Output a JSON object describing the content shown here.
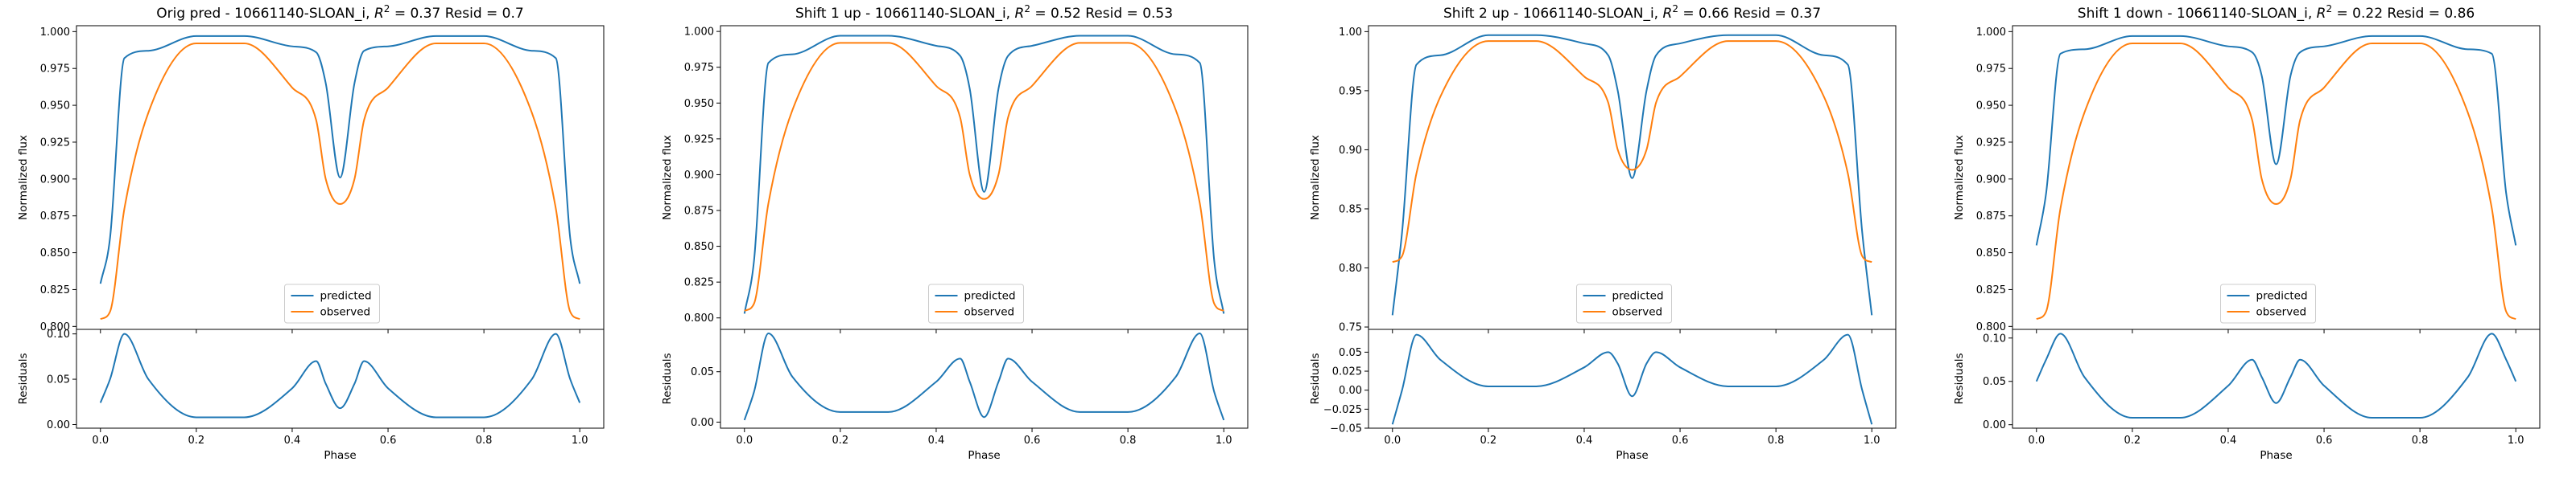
{
  "colors": {
    "predicted": "#1f77b4",
    "observed": "#ff7f0e"
  },
  "chart_data": [
    {
      "type": "line",
      "title": "Orig pred - 10661140-SLOAN_i, R² = 0.37 Resid = 0.7",
      "title_parts": {
        "prefix": "Orig pred - 10661140-SLOAN_i, ",
        "r2_value": "0.37",
        "resid_text": "Resid = 0.7"
      },
      "xlabel": "Phase",
      "ylabel": "Normalized flux",
      "resid_ylabel": "Residuals",
      "legend": {
        "entries": [
          "predicted",
          "observed"
        ],
        "placement": "lower-center"
      },
      "x": [
        0.0,
        0.02,
        0.05,
        0.1,
        0.2,
        0.3,
        0.4,
        0.45,
        0.47,
        0.5,
        0.53,
        0.55,
        0.6,
        0.7,
        0.8,
        0.9,
        0.95,
        0.98,
        1.0
      ],
      "series": [
        {
          "name": "predicted",
          "values": [
            0.829,
            0.86,
            0.982,
            0.987,
            0.997,
            0.997,
            0.99,
            0.986,
            0.965,
            0.901,
            0.965,
            0.987,
            0.99,
            0.997,
            0.997,
            0.987,
            0.982,
            0.86,
            0.829
          ]
        },
        {
          "name": "observed",
          "values": [
            0.805,
            0.81,
            0.88,
            0.945,
            0.992,
            0.992,
            0.962,
            0.94,
            0.9,
            0.883,
            0.9,
            0.94,
            0.962,
            0.992,
            0.992,
            0.945,
            0.88,
            0.81,
            0.805
          ]
        }
      ],
      "residuals": [
        0.024,
        0.05,
        0.1,
        0.05,
        0.008,
        0.008,
        0.04,
        0.07,
        0.045,
        0.018,
        0.045,
        0.07,
        0.04,
        0.008,
        0.008,
        0.05,
        0.1,
        0.05,
        0.024
      ],
      "xlim": [
        -0.05,
        1.05
      ],
      "ylim": [
        0.798,
        1.004
      ],
      "yticks": [
        0.8,
        0.825,
        0.85,
        0.875,
        0.9,
        0.925,
        0.95,
        0.975,
        1.0
      ],
      "ytick_labels": [
        "0.800",
        "0.825",
        "0.850",
        "0.875",
        "0.900",
        "0.925",
        "0.950",
        "0.975",
        "1.000"
      ],
      "resid_ylim": [
        -0.004,
        0.105
      ],
      "resid_yticks": [
        0.0,
        0.05,
        0.1
      ],
      "resid_ytick_labels": [
        "0.00",
        "0.05",
        "0.10"
      ],
      "xticks": [
        0.0,
        0.2,
        0.4,
        0.6,
        0.8,
        1.0
      ],
      "xtick_labels": [
        "0.0",
        "0.2",
        "0.4",
        "0.6",
        "0.8",
        "1.0"
      ]
    },
    {
      "type": "line",
      "title": "Shift 1 up - 10661140-SLOAN_i, R² = 0.52 Resid = 0.53",
      "title_parts": {
        "prefix": "Shift 1 up - 10661140-SLOAN_i, ",
        "r2_value": "0.52",
        "resid_text": "Resid = 0.53"
      },
      "xlabel": "Phase",
      "ylabel": "Normalized flux",
      "resid_ylabel": "Residuals",
      "legend": {
        "entries": [
          "predicted",
          "observed"
        ],
        "placement": "lower-center"
      },
      "x": [
        0.0,
        0.02,
        0.05,
        0.1,
        0.2,
        0.3,
        0.4,
        0.45,
        0.47,
        0.5,
        0.53,
        0.55,
        0.6,
        0.7,
        0.8,
        0.9,
        0.95,
        0.98,
        1.0
      ],
      "series": [
        {
          "name": "predicted",
          "values": [
            0.803,
            0.84,
            0.978,
            0.984,
            0.997,
            0.997,
            0.99,
            0.983,
            0.96,
            0.888,
            0.96,
            0.983,
            0.99,
            0.997,
            0.997,
            0.984,
            0.978,
            0.84,
            0.803
          ]
        },
        {
          "name": "observed",
          "values": [
            0.805,
            0.81,
            0.88,
            0.945,
            0.992,
            0.992,
            0.962,
            0.94,
            0.9,
            0.883,
            0.9,
            0.94,
            0.962,
            0.992,
            0.992,
            0.945,
            0.88,
            0.81,
            0.805
          ]
        }
      ],
      "residuals": [
        0.002,
        0.03,
        0.088,
        0.045,
        0.01,
        0.01,
        0.04,
        0.063,
        0.04,
        0.005,
        0.04,
        0.063,
        0.04,
        0.01,
        0.01,
        0.045,
        0.088,
        0.03,
        0.002
      ],
      "xlim": [
        -0.05,
        1.05
      ],
      "ylim": [
        0.792,
        1.004
      ],
      "yticks": [
        0.8,
        0.825,
        0.85,
        0.875,
        0.9,
        0.925,
        0.95,
        0.975,
        1.0
      ],
      "ytick_labels": [
        "0.800",
        "0.825",
        "0.850",
        "0.875",
        "0.900",
        "0.925",
        "0.950",
        "0.975",
        "1.000"
      ],
      "resid_ylim": [
        -0.006,
        0.092
      ],
      "resid_yticks": [
        0.0,
        0.05
      ],
      "resid_ytick_labels": [
        "0.00",
        "0.05"
      ],
      "xticks": [
        0.0,
        0.2,
        0.4,
        0.6,
        0.8,
        1.0
      ],
      "xtick_labels": [
        "0.0",
        "0.2",
        "0.4",
        "0.6",
        "0.8",
        "1.0"
      ]
    },
    {
      "type": "line",
      "title": "Shift 2 up - 10661140-SLOAN_i, R² = 0.66 Resid = 0.37",
      "title_parts": {
        "prefix": "Shift 2 up - 10661140-SLOAN_i, ",
        "r2_value": "0.66",
        "resid_text": "Resid = 0.37"
      },
      "xlabel": "Phase",
      "ylabel": "Normalized flux",
      "resid_ylabel": "Residuals",
      "legend": {
        "entries": [
          "predicted",
          "observed"
        ],
        "placement": "lower-center"
      },
      "x": [
        0.0,
        0.02,
        0.05,
        0.1,
        0.2,
        0.3,
        0.4,
        0.45,
        0.47,
        0.5,
        0.53,
        0.55,
        0.6,
        0.7,
        0.8,
        0.9,
        0.95,
        0.98,
        1.0
      ],
      "series": [
        {
          "name": "predicted",
          "values": [
            0.76,
            0.83,
            0.972,
            0.98,
            0.997,
            0.997,
            0.99,
            0.98,
            0.95,
            0.876,
            0.95,
            0.98,
            0.99,
            0.997,
            0.997,
            0.98,
            0.972,
            0.83,
            0.76
          ]
        },
        {
          "name": "observed",
          "values": [
            0.805,
            0.81,
            0.88,
            0.945,
            0.992,
            0.992,
            0.962,
            0.94,
            0.9,
            0.883,
            0.9,
            0.94,
            0.962,
            0.992,
            0.992,
            0.945,
            0.88,
            0.81,
            0.805
          ]
        }
      ],
      "residuals": [
        -0.045,
        0.0,
        0.073,
        0.04,
        0.005,
        0.005,
        0.03,
        0.05,
        0.035,
        -0.008,
        0.035,
        0.05,
        0.03,
        0.005,
        0.005,
        0.04,
        0.073,
        0.0,
        -0.045
      ],
      "xlim": [
        -0.05,
        1.05
      ],
      "ylim": [
        0.748,
        1.005
      ],
      "yticks": [
        0.75,
        0.8,
        0.85,
        0.9,
        0.95,
        1.0
      ],
      "ytick_labels": [
        "0.75",
        "0.80",
        "0.85",
        "0.90",
        "0.95",
        "1.00"
      ],
      "resid_ylim": [
        -0.05,
        0.08
      ],
      "resid_yticks": [
        -0.05,
        -0.025,
        0.0,
        0.025,
        0.05
      ],
      "resid_ytick_labels": [
        "−0.05",
        "−0.025",
        "0.00",
        "0.025",
        "0.05"
      ],
      "xticks": [
        0.0,
        0.2,
        0.4,
        0.6,
        0.8,
        1.0
      ],
      "xtick_labels": [
        "0.0",
        "0.2",
        "0.4",
        "0.6",
        "0.8",
        "1.0"
      ]
    },
    {
      "type": "line",
      "title": "Shift 1 down - 10661140-SLOAN_i, R² = 0.22 Resid = 0.86",
      "title_parts": {
        "prefix": "Shift 1 down - 10661140-SLOAN_i, ",
        "r2_value": "0.22",
        "resid_text": "Resid = 0.86"
      },
      "xlabel": "Phase",
      "ylabel": "Normalized flux",
      "resid_ylabel": "Residuals",
      "legend": {
        "entries": [
          "predicted",
          "observed"
        ],
        "placement": "lower-center"
      },
      "x": [
        0.0,
        0.02,
        0.05,
        0.1,
        0.2,
        0.3,
        0.4,
        0.45,
        0.47,
        0.5,
        0.53,
        0.55,
        0.6,
        0.7,
        0.8,
        0.9,
        0.95,
        0.98,
        1.0
      ],
      "series": [
        {
          "name": "predicted",
          "values": [
            0.855,
            0.89,
            0.985,
            0.988,
            0.997,
            0.997,
            0.99,
            0.986,
            0.97,
            0.91,
            0.97,
            0.986,
            0.99,
            0.997,
            0.997,
            0.988,
            0.985,
            0.89,
            0.855
          ]
        },
        {
          "name": "observed",
          "values": [
            0.805,
            0.81,
            0.88,
            0.945,
            0.992,
            0.992,
            0.962,
            0.94,
            0.9,
            0.883,
            0.9,
            0.94,
            0.962,
            0.992,
            0.992,
            0.945,
            0.88,
            0.81,
            0.805
          ]
        }
      ],
      "residuals": [
        0.05,
        0.075,
        0.105,
        0.055,
        0.008,
        0.008,
        0.045,
        0.075,
        0.055,
        0.025,
        0.055,
        0.075,
        0.045,
        0.008,
        0.008,
        0.055,
        0.105,
        0.075,
        0.05
      ],
      "xlim": [
        -0.05,
        1.05
      ],
      "ylim": [
        0.798,
        1.004
      ],
      "yticks": [
        0.8,
        0.825,
        0.85,
        0.875,
        0.9,
        0.925,
        0.95,
        0.975,
        1.0
      ],
      "ytick_labels": [
        "0.800",
        "0.825",
        "0.850",
        "0.875",
        "0.900",
        "0.925",
        "0.950",
        "0.975",
        "1.000"
      ],
      "resid_ylim": [
        -0.004,
        0.11
      ],
      "resid_yticks": [
        0.0,
        0.05,
        0.1
      ],
      "resid_ytick_labels": [
        "0.00",
        "0.05",
        "0.10"
      ],
      "xticks": [
        0.0,
        0.2,
        0.4,
        0.6,
        0.8,
        1.0
      ],
      "xtick_labels": [
        "0.0",
        "0.2",
        "0.4",
        "0.6",
        "0.8",
        "1.0"
      ]
    }
  ]
}
